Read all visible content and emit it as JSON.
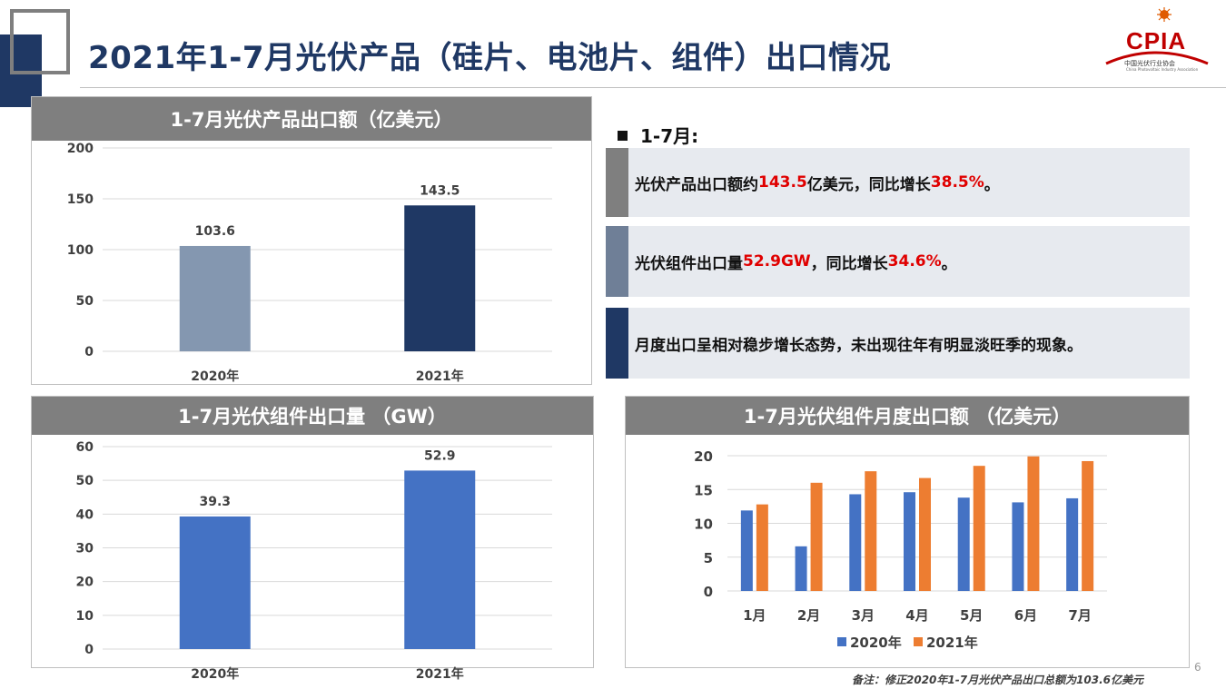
{
  "header": {
    "title": "2021年1-7月光伏产品（硅片、电池片、组件）出口情况",
    "logo_text": "CPIA",
    "logo_subtitle": "中国光伏行业协会",
    "logo_subtitle_en": "China Photovoltaic Industry Association"
  },
  "colors": {
    "navy": "#1f3864",
    "header_gray": "#7f7f7f",
    "bar_2020_export": "#8497b0",
    "bar_2021_export": "#1f3864",
    "bar_module": "#4472c4",
    "series_2020": "#4472c4",
    "series_2021": "#ed7d31",
    "highlight_red": "#e00000"
  },
  "panels": {
    "export_value": {
      "header": "1-7月光伏产品出口额（亿美元）",
      "chart_data": {
        "type": "bar",
        "categories": [
          "2020年",
          "2021年"
        ],
        "values": [
          103.6,
          143.5
        ],
        "data_labels": [
          "103.6",
          "143.5"
        ],
        "ylim": [
          0,
          200
        ],
        "yticks": [
          "0",
          "50",
          "100",
          "150",
          "200"
        ],
        "bar_colors": [
          "#8497b0",
          "#1f3864"
        ],
        "grid": true
      }
    },
    "module_volume": {
      "header": "1-7月光伏组件出口量 （GW）",
      "chart_data": {
        "type": "bar",
        "categories": [
          "2020年",
          "2021年"
        ],
        "values": [
          39.3,
          52.9
        ],
        "data_labels": [
          "39.3",
          "52.9"
        ],
        "ylim": [
          0,
          60
        ],
        "yticks": [
          "0",
          "10",
          "20",
          "30",
          "40",
          "50",
          "60"
        ],
        "bar_colors": [
          "#4472c4",
          "#4472c4"
        ],
        "grid": true
      }
    },
    "monthly_module": {
      "header": "1-7月光伏组件月度出口额 （亿美元）",
      "chart_data": {
        "type": "bar",
        "categories": [
          "1月",
          "2月",
          "3月",
          "4月",
          "5月",
          "6月",
          "7月"
        ],
        "series": [
          {
            "name": "2020年",
            "color": "#4472c4",
            "values": [
              11.9,
              6.6,
              14.3,
              14.6,
              13.8,
              13.1,
              13.7
            ]
          },
          {
            "name": "2021年",
            "color": "#ed7d31",
            "values": [
              12.8,
              16.0,
              17.7,
              16.7,
              18.5,
              19.9,
              19.2
            ]
          }
        ],
        "ylim": [
          0,
          20
        ],
        "yticks": [
          "0",
          "5",
          "10",
          "15",
          "20"
        ],
        "legend_position": "bottom",
        "grid": true
      }
    }
  },
  "summary": {
    "label": "1-7月:",
    "items": [
      {
        "pre": "光伏产品出口额约",
        "v1": "143.5",
        "mid": "亿美元，同比增长",
        "v2": "38.5%",
        "post": "。"
      },
      {
        "pre": "光伏组件出口量",
        "v1": "52.9GW",
        "mid": "，同比增长",
        "v2": "34.6%",
        "post": "。"
      },
      {
        "text": "月度出口呈相对稳步增长态势，未出现往年有明显淡旺季的现象。"
      }
    ]
  },
  "footnote": "备注：修正2020年1-7月光伏产品出口总额为103.6亿美元",
  "page_number": "6"
}
